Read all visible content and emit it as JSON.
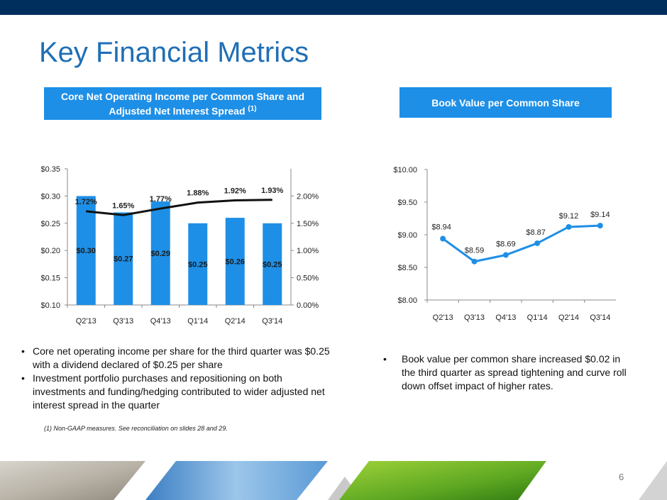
{
  "title": "Key Financial Metrics",
  "left_header": {
    "line1": "Core Net Operating Income per Common Share and",
    "line2": "Adjusted Net Interest Spread",
    "sup": "(1)"
  },
  "right_header": "Book Value per Common Share",
  "chart_data": [
    {
      "type": "bar",
      "categories": [
        "Q2'13",
        "Q3'13",
        "Q4'13",
        "Q1'14",
        "Q2'14",
        "Q3'14"
      ],
      "series": [
        {
          "values": [
            0.3,
            0.27,
            0.29,
            0.25,
            0.26,
            0.25
          ],
          "labels": [
            "$0.30",
            "$0.27",
            "$0.29",
            "$0.25",
            "$0.26",
            "$0.25"
          ],
          "axis": "left",
          "color": "#1e8fe6"
        },
        {
          "type": "line",
          "values": [
            1.72,
            1.65,
            1.77,
            1.88,
            1.92,
            1.93
          ],
          "labels": [
            "1.72%",
            "1.65%",
            "1.77%",
            "1.88%",
            "1.92%",
            "1.93%"
          ],
          "axis": "right",
          "color": "#111111"
        }
      ],
      "ylim": [
        0.1,
        0.35
      ],
      "yticks": [
        "$0.10",
        "$0.15",
        "$0.20",
        "$0.25",
        "$0.30",
        "$0.35"
      ],
      "y2lim": [
        0.0,
        2.5
      ],
      "y2ticks": [
        "0.00%",
        "0.50%",
        "1.00%",
        "1.50%",
        "2.00%"
      ]
    },
    {
      "type": "line",
      "categories": [
        "Q2'13",
        "Q3'13",
        "Q4'13",
        "Q1'14",
        "Q2'14",
        "Q3'14"
      ],
      "series": [
        {
          "values": [
            8.94,
            8.59,
            8.69,
            8.87,
            9.12,
            9.14
          ],
          "labels": [
            "$8.94",
            "$8.59",
            "$8.69",
            "$8.87",
            "$9.12",
            "$9.14"
          ],
          "color": "#1e8fe6"
        }
      ],
      "ylim": [
        8.0,
        10.0
      ],
      "yticks": [
        "$8.00",
        "$8.50",
        "$9.00",
        "$9.50",
        "$10.00"
      ]
    }
  ],
  "bullets_left": [
    "Core net operating income per share for the third quarter was $0.25 with a dividend declared of $0.25 per share",
    "Investment portfolio purchases and repositioning on both investments and funding/hedging contributed to wider adjusted net interest spread in the quarter"
  ],
  "bullets_right": [
    "Book value per common share increased $0.02 in the third quarter as spread tightening and curve roll down offset impact of higher rates."
  ],
  "bullet_char": "•",
  "footnote": "(1)    Non-GAAP measures. See reconciliation on slides 28 and 29.",
  "page_number": "6",
  "colors": {
    "brand_navy": "#002e5d",
    "accent_blue": "#1e8fe6",
    "title_blue": "#1f6fb5"
  }
}
